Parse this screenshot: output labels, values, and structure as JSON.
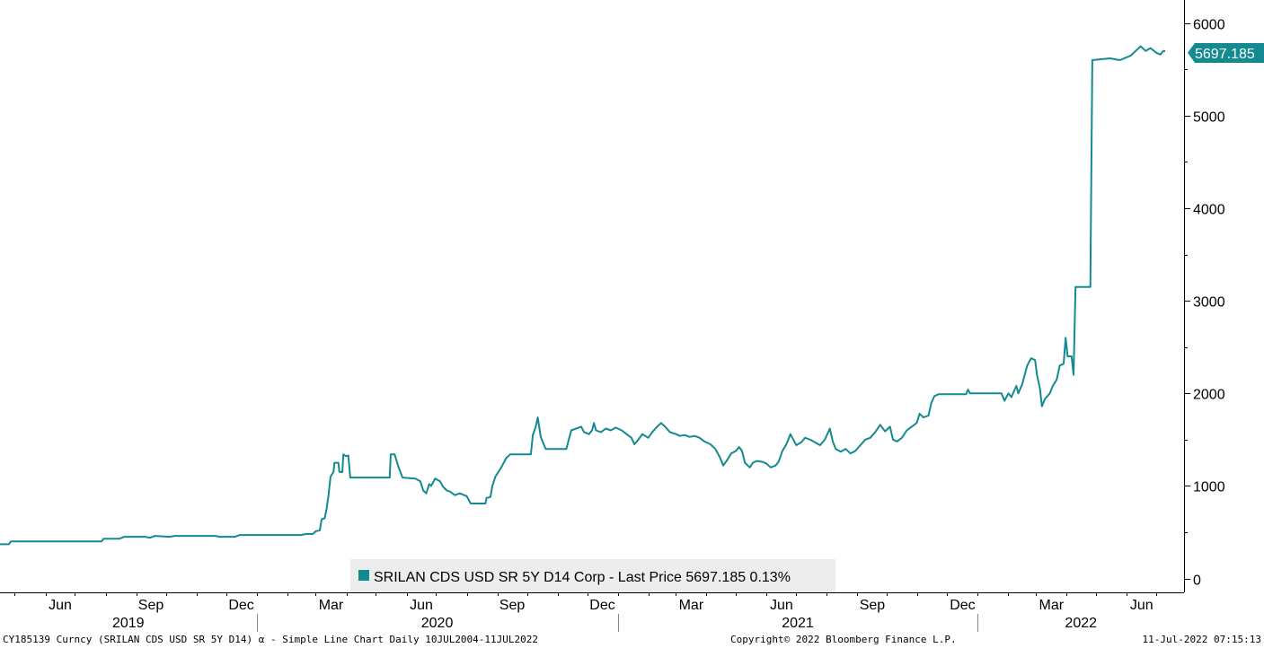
{
  "footer": {
    "left": "CY185139 Curncy (SRILAN CDS USD SR 5Y D14) α - Simple Line Chart  Daily 10JUL2004-11JUL2022",
    "center": "Copyright© 2022 Bloomberg Finance L.P.",
    "right": "11-Jul-2022 07:15:13"
  },
  "colors": {
    "series": "#138a8f",
    "axis": "#000000",
    "legend_bg": "#ededed"
  },
  "chart_data": {
    "type": "line",
    "title": "",
    "xlabel": "",
    "ylabel": "",
    "ylim": [
      -150,
      6250
    ],
    "xlim": [
      "2019-04-16",
      "2022-07-29"
    ],
    "y_ticks": [
      0,
      1000,
      2000,
      3000,
      4000,
      5000,
      6000
    ],
    "y_axis_side": "right",
    "grid": false,
    "month_ticks": [
      {
        "date": "2019-06-01",
        "label": "Jun"
      },
      {
        "date": "2019-09-01",
        "label": "Sep"
      },
      {
        "date": "2019-12-01",
        "label": "Dec"
      },
      {
        "date": "2020-03-01",
        "label": "Mar"
      },
      {
        "date": "2020-06-01",
        "label": "Jun"
      },
      {
        "date": "2020-09-01",
        "label": "Sep"
      },
      {
        "date": "2020-12-01",
        "label": "Dec"
      },
      {
        "date": "2021-03-01",
        "label": "Mar"
      },
      {
        "date": "2021-06-01",
        "label": "Jun"
      },
      {
        "date": "2021-09-01",
        "label": "Sep"
      },
      {
        "date": "2021-12-01",
        "label": "Dec"
      },
      {
        "date": "2022-03-01",
        "label": "Mar"
      },
      {
        "date": "2022-06-01",
        "label": "Jun"
      }
    ],
    "year_labels": [
      {
        "year": "2019",
        "from": "2019-04-16",
        "to": "2020-01-01"
      },
      {
        "year": "2020",
        "from": "2020-01-01",
        "to": "2021-01-01"
      },
      {
        "year": "2021",
        "from": "2021-01-01",
        "to": "2022-01-01"
      },
      {
        "year": "2022",
        "from": "2022-01-01",
        "to": "2022-07-29"
      }
    ],
    "legend": {
      "text": "SRILAN CDS USD SR 5Y D14 Corp - Last Price 5697.185  0.13%",
      "position": "bottom-center"
    },
    "last_price_label": "5697.185",
    "series": [
      {
        "name": "SRILAN CDS USD SR 5Y D14 Corp - Last Price",
        "points": [
          [
            "2019-04-16",
            370
          ],
          [
            "2019-04-25",
            370
          ],
          [
            "2019-04-27",
            400
          ],
          [
            "2019-06-15",
            400
          ],
          [
            "2019-07-28",
            400
          ],
          [
            "2019-07-30",
            430
          ],
          [
            "2019-08-15",
            430
          ],
          [
            "2019-08-20",
            450
          ],
          [
            "2019-09-10",
            450
          ],
          [
            "2019-09-15",
            440
          ],
          [
            "2019-09-20",
            460
          ],
          [
            "2019-10-05",
            450
          ],
          [
            "2019-10-10",
            460
          ],
          [
            "2019-11-20",
            460
          ],
          [
            "2019-11-25",
            450
          ],
          [
            "2019-12-10",
            450
          ],
          [
            "2019-12-15",
            470
          ],
          [
            "2020-01-20",
            470
          ],
          [
            "2020-02-15",
            470
          ],
          [
            "2020-02-20",
            480
          ],
          [
            "2020-02-27",
            480
          ],
          [
            "2020-03-01",
            510
          ],
          [
            "2020-03-05",
            520
          ],
          [
            "2020-03-07",
            640
          ],
          [
            "2020-03-10",
            650
          ],
          [
            "2020-03-12",
            750
          ],
          [
            "2020-03-14",
            900
          ],
          [
            "2020-03-16",
            1100
          ],
          [
            "2020-03-19",
            1150
          ],
          [
            "2020-03-20",
            1250
          ],
          [
            "2020-03-24",
            1250
          ],
          [
            "2020-03-25",
            1150
          ],
          [
            "2020-03-28",
            1150
          ],
          [
            "2020-03-29",
            1340
          ],
          [
            "2020-04-01",
            1320
          ],
          [
            "2020-04-03",
            1330
          ],
          [
            "2020-04-05",
            1090
          ],
          [
            "2020-05-15",
            1090
          ],
          [
            "2020-05-16",
            1340
          ],
          [
            "2020-05-20",
            1340
          ],
          [
            "2020-05-24",
            1200
          ],
          [
            "2020-05-28",
            1090
          ],
          [
            "2020-06-10",
            1080
          ],
          [
            "2020-06-15",
            1050
          ],
          [
            "2020-06-18",
            950
          ],
          [
            "2020-06-21",
            920
          ],
          [
            "2020-06-24",
            1020
          ],
          [
            "2020-06-26",
            1000
          ],
          [
            "2020-06-30",
            1080
          ],
          [
            "2020-07-05",
            1050
          ],
          [
            "2020-07-08",
            990
          ],
          [
            "2020-07-12",
            950
          ],
          [
            "2020-07-15",
            940
          ],
          [
            "2020-07-20",
            900
          ],
          [
            "2020-07-25",
            920
          ],
          [
            "2020-08-01",
            890
          ],
          [
            "2020-08-05",
            810
          ],
          [
            "2020-08-20",
            810
          ],
          [
            "2020-08-21",
            870
          ],
          [
            "2020-08-25",
            880
          ],
          [
            "2020-08-27",
            1000
          ],
          [
            "2020-08-30",
            1100
          ],
          [
            "2020-09-02",
            1150
          ],
          [
            "2020-09-05",
            1200
          ],
          [
            "2020-09-10",
            1300
          ],
          [
            "2020-09-14",
            1340
          ],
          [
            "2020-10-05",
            1340
          ],
          [
            "2020-10-07",
            1550
          ],
          [
            "2020-10-10",
            1640
          ],
          [
            "2020-10-12",
            1740
          ],
          [
            "2020-10-15",
            1530
          ],
          [
            "2020-10-20",
            1400
          ],
          [
            "2020-11-10",
            1400
          ],
          [
            "2020-11-12",
            1480
          ],
          [
            "2020-11-15",
            1600
          ],
          [
            "2020-11-20",
            1620
          ],
          [
            "2020-11-25",
            1640
          ],
          [
            "2020-11-28",
            1580
          ],
          [
            "2020-12-03",
            1560
          ],
          [
            "2020-12-06",
            1600
          ],
          [
            "2020-12-08",
            1680
          ],
          [
            "2020-12-10",
            1600
          ],
          [
            "2020-12-15",
            1580
          ],
          [
            "2020-12-20",
            1620
          ],
          [
            "2020-12-25",
            1600
          ],
          [
            "2020-12-30",
            1630
          ],
          [
            "2021-01-05",
            1600
          ],
          [
            "2021-01-10",
            1560
          ],
          [
            "2021-01-15",
            1520
          ],
          [
            "2021-01-18",
            1450
          ],
          [
            "2021-01-22",
            1500
          ],
          [
            "2021-01-26",
            1560
          ],
          [
            "2021-02-01",
            1520
          ],
          [
            "2021-02-05",
            1580
          ],
          [
            "2021-02-10",
            1640
          ],
          [
            "2021-02-14",
            1680
          ],
          [
            "2021-02-18",
            1640
          ],
          [
            "2021-02-23",
            1580
          ],
          [
            "2021-03-01",
            1560
          ],
          [
            "2021-03-05",
            1540
          ],
          [
            "2021-03-10",
            1550
          ],
          [
            "2021-03-15",
            1530
          ],
          [
            "2021-03-20",
            1540
          ],
          [
            "2021-03-25",
            1520
          ],
          [
            "2021-03-30",
            1480
          ],
          [
            "2021-04-05",
            1450
          ],
          [
            "2021-04-10",
            1400
          ],
          [
            "2021-04-15",
            1300
          ],
          [
            "2021-04-18",
            1220
          ],
          [
            "2021-04-22",
            1280
          ],
          [
            "2021-04-26",
            1350
          ],
          [
            "2021-05-01",
            1380
          ],
          [
            "2021-05-04",
            1420
          ],
          [
            "2021-05-07",
            1380
          ],
          [
            "2021-05-10",
            1250
          ],
          [
            "2021-05-15",
            1200
          ],
          [
            "2021-05-18",
            1250
          ],
          [
            "2021-05-22",
            1270
          ],
          [
            "2021-05-28",
            1260
          ],
          [
            "2021-06-01",
            1240
          ],
          [
            "2021-06-05",
            1200
          ],
          [
            "2021-06-10",
            1220
          ],
          [
            "2021-06-13",
            1260
          ],
          [
            "2021-06-17",
            1380
          ],
          [
            "2021-06-21",
            1450
          ],
          [
            "2021-06-25",
            1560
          ],
          [
            "2021-06-28",
            1500
          ],
          [
            "2021-07-01",
            1440
          ],
          [
            "2021-07-06",
            1470
          ],
          [
            "2021-07-10",
            1520
          ],
          [
            "2021-07-15",
            1500
          ],
          [
            "2021-07-20",
            1470
          ],
          [
            "2021-07-25",
            1440
          ],
          [
            "2021-07-30",
            1500
          ],
          [
            "2021-08-04",
            1620
          ],
          [
            "2021-08-07",
            1480
          ],
          [
            "2021-08-10",
            1400
          ],
          [
            "2021-08-15",
            1370
          ],
          [
            "2021-08-20",
            1400
          ],
          [
            "2021-08-25",
            1350
          ],
          [
            "2021-08-30",
            1380
          ],
          [
            "2021-09-04",
            1440
          ],
          [
            "2021-09-09",
            1500
          ],
          [
            "2021-09-14",
            1520
          ],
          [
            "2021-09-19",
            1580
          ],
          [
            "2021-09-24",
            1660
          ],
          [
            "2021-09-29",
            1590
          ],
          [
            "2021-10-04",
            1640
          ],
          [
            "2021-10-07",
            1500
          ],
          [
            "2021-10-11",
            1480
          ],
          [
            "2021-10-16",
            1520
          ],
          [
            "2021-10-21",
            1600
          ],
          [
            "2021-10-26",
            1640
          ],
          [
            "2021-10-31",
            1680
          ],
          [
            "2021-11-03",
            1780
          ],
          [
            "2021-11-07",
            1740
          ],
          [
            "2021-11-12",
            1760
          ],
          [
            "2021-11-15",
            1900
          ],
          [
            "2021-11-18",
            1970
          ],
          [
            "2021-11-22",
            1990
          ],
          [
            "2021-12-20",
            1990
          ],
          [
            "2021-12-22",
            2040
          ],
          [
            "2021-12-24",
            2000
          ],
          [
            "2022-01-25",
            2000
          ],
          [
            "2022-01-28",
            1920
          ],
          [
            "2022-02-01",
            2000
          ],
          [
            "2022-02-04",
            1960
          ],
          [
            "2022-02-09",
            2080
          ],
          [
            "2022-02-11",
            2000
          ],
          [
            "2022-02-15",
            2100
          ],
          [
            "2022-02-20",
            2300
          ],
          [
            "2022-02-24",
            2380
          ],
          [
            "2022-02-28",
            2360
          ],
          [
            "2022-03-02",
            2200
          ],
          [
            "2022-03-05",
            2050
          ],
          [
            "2022-03-07",
            1860
          ],
          [
            "2022-03-10",
            1940
          ],
          [
            "2022-03-15",
            2000
          ],
          [
            "2022-03-18",
            2080
          ],
          [
            "2022-03-22",
            2150
          ],
          [
            "2022-03-25",
            2300
          ],
          [
            "2022-03-29",
            2320
          ],
          [
            "2022-03-31",
            2600
          ],
          [
            "2022-04-02",
            2400
          ],
          [
            "2022-04-06",
            2400
          ],
          [
            "2022-04-08",
            2200
          ],
          [
            "2022-04-10",
            3150
          ],
          [
            "2022-04-25",
            3150
          ],
          [
            "2022-04-27",
            5600
          ],
          [
            "2022-05-15",
            5620
          ],
          [
            "2022-05-25",
            5600
          ],
          [
            "2022-06-05",
            5650
          ],
          [
            "2022-06-10",
            5700
          ],
          [
            "2022-06-15",
            5750
          ],
          [
            "2022-06-20",
            5700
          ],
          [
            "2022-06-25",
            5730
          ],
          [
            "2022-07-01",
            5680
          ],
          [
            "2022-07-05",
            5660
          ],
          [
            "2022-07-08",
            5700
          ],
          [
            "2022-07-10",
            5697.185
          ]
        ]
      }
    ]
  }
}
